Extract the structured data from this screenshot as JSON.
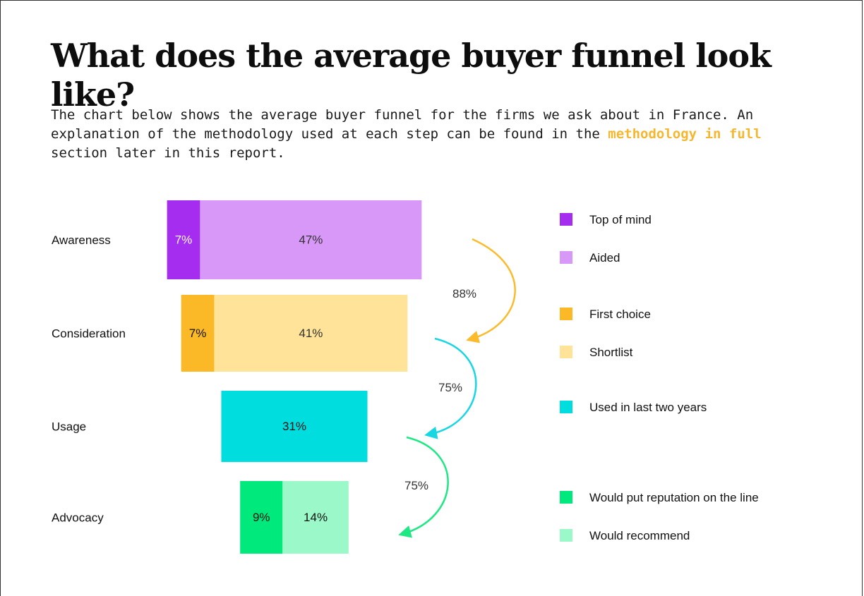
{
  "page": {
    "title": "What does the average buyer funnel look like?",
    "subtitle_part1": "The chart below shows the average buyer funnel for the firms we ask about in France. An explanation of the methodology used at each step can be found in the ",
    "subtitle_link": "methodology in full",
    "subtitle_part2": " section later in this report."
  },
  "chart_data": {
    "type": "bar",
    "orientation": "horizontal-funnel",
    "categories": [
      "Awareness",
      "Consideration",
      "Usage",
      "Advocacy"
    ],
    "stages": [
      {
        "name": "Awareness",
        "segments": [
          {
            "label": "Top of mind",
            "value": 7,
            "text": "7%",
            "color": "#a42df0",
            "text_color": "#ffffff"
          },
          {
            "label": "Aided",
            "value": 47,
            "text": "47%",
            "color": "#d898f8",
            "text_color": "#333333"
          }
        ]
      },
      {
        "name": "Consideration",
        "segments": [
          {
            "label": "First choice",
            "value": 7,
            "text": "7%",
            "color": "#fbb827",
            "text_color": "#111111"
          },
          {
            "label": "Shortlist",
            "value": 41,
            "text": "41%",
            "color": "#fee398",
            "text_color": "#333333"
          }
        ]
      },
      {
        "name": "Usage",
        "segments": [
          {
            "label": "Used in last two years",
            "value": 31,
            "text": "31%",
            "color": "#00dddf",
            "text_color": "#111111"
          }
        ]
      },
      {
        "name": "Advocacy",
        "segments": [
          {
            "label": "Would put reputation on the line",
            "value": 9,
            "text": "9%",
            "color": "#00e97c",
            "text_color": "#111111"
          },
          {
            "label": "Would recommend",
            "value": 14,
            "text": "14%",
            "color": "#9bf8c8",
            "text_color": "#111111"
          }
        ]
      }
    ],
    "conversions": [
      {
        "from": "Awareness",
        "to": "Consideration",
        "value": 88,
        "text": "88%",
        "color": "#fbbb2c"
      },
      {
        "from": "Consideration",
        "to": "Usage",
        "value": 75,
        "text": "75%",
        "color": "#18d7e2"
      },
      {
        "from": "Usage",
        "to": "Advocacy",
        "value": 75,
        "text": "75%",
        "color": "#1ee883"
      }
    ],
    "legend": [
      {
        "label": "Top of mind",
        "color": "#a42df0"
      },
      {
        "label": "Aided",
        "color": "#d898f8"
      },
      {
        "label": "First choice",
        "color": "#fbb827"
      },
      {
        "label": "Shortlist",
        "color": "#fee398"
      },
      {
        "label": "Used in last two years",
        "color": "#00dddf"
      },
      {
        "label": "Would put reputation on the line",
        "color": "#00e97c"
      },
      {
        "label": "Would recommend",
        "color": "#9bf8c8"
      }
    ],
    "legend_position": "right"
  }
}
